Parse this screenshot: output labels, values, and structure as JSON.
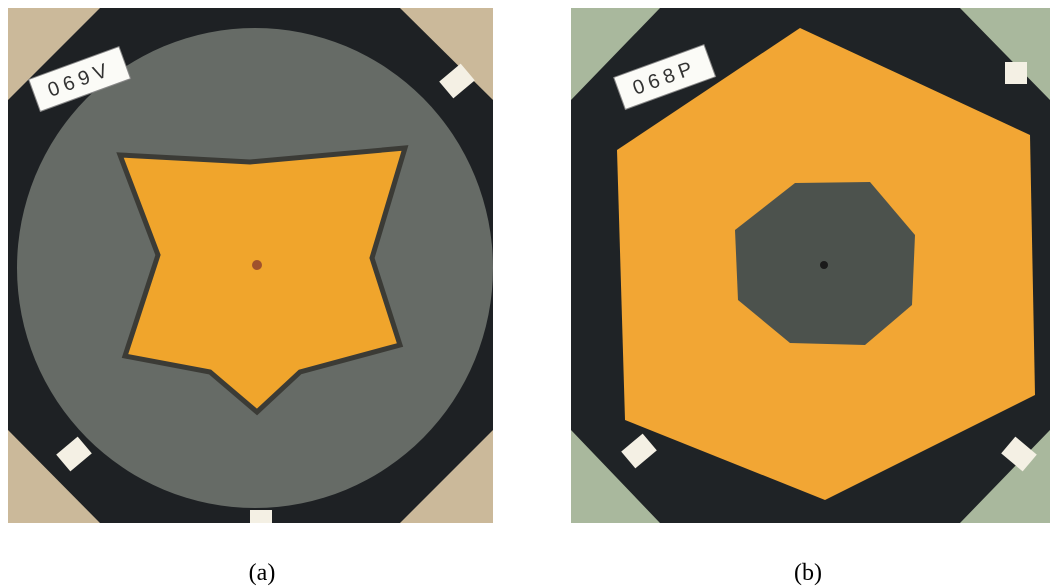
{
  "panels": [
    {
      "tag": "069V",
      "caption": "(a)"
    },
    {
      "tag": "068P",
      "caption": "(b)"
    }
  ]
}
